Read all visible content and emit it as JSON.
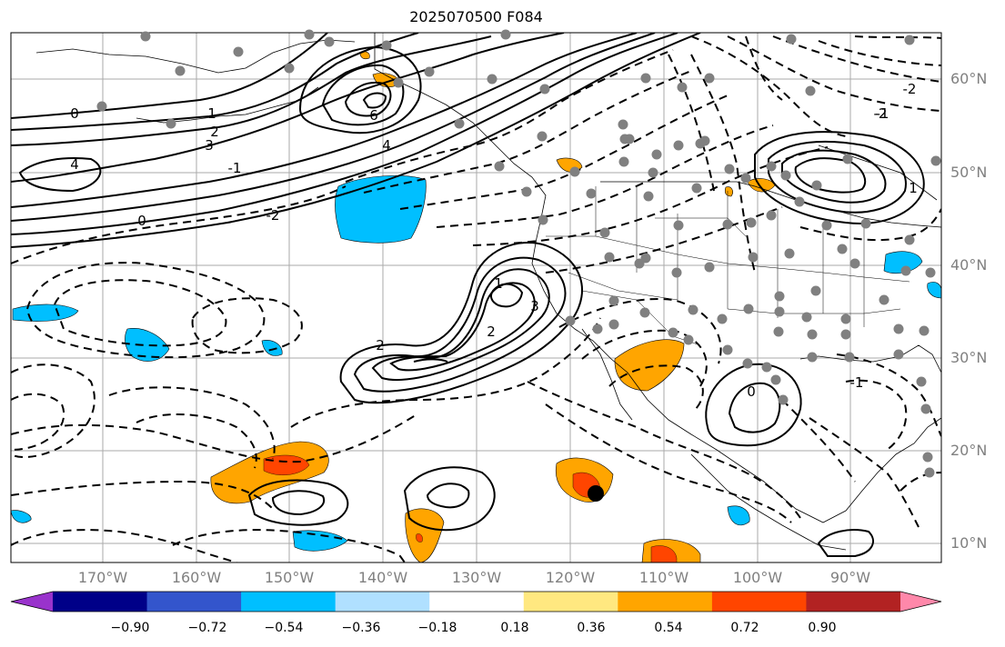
{
  "title": "2025070500 F084",
  "lat_labels": [
    "60°N",
    "50°N",
    "40°N",
    "30°N",
    "20°N",
    "10°N"
  ],
  "lon_labels": [
    "170°W",
    "160°W",
    "150°W",
    "140°W",
    "130°W",
    "120°W",
    "110°W",
    "100°W",
    "90°W"
  ],
  "colorbar": {
    "colors": [
      "#9933cc",
      "#000088",
      "#3355cc",
      "#00bfff",
      "#b0e0ff",
      "#ffffff",
      "#ffe880",
      "#ffa500",
      "#ff4500",
      "#b22222",
      "#ff88aa"
    ],
    "labels": [
      "−0.90",
      "−0.72",
      "−0.54",
      "−0.36",
      "−0.18",
      "0.18",
      "0.36",
      "0.54",
      "0.72",
      "0.90"
    ]
  },
  "colors": {
    "positive_fill": "#ffa500",
    "strong_positive_fill": "#ff4500",
    "negative_fill": "#00bfff",
    "contour": "#000000",
    "station": "#808080",
    "grid": "#aaaaaa"
  },
  "contour_labels": [
    "0",
    "2",
    "4",
    "6",
    "1",
    "3",
    "-2",
    "-1",
    "0",
    "2",
    "4",
    "-2",
    "-1",
    "1",
    "2",
    "3",
    "0",
    "-1",
    "-2",
    "1"
  ],
  "marker": "storm-center-marker"
}
